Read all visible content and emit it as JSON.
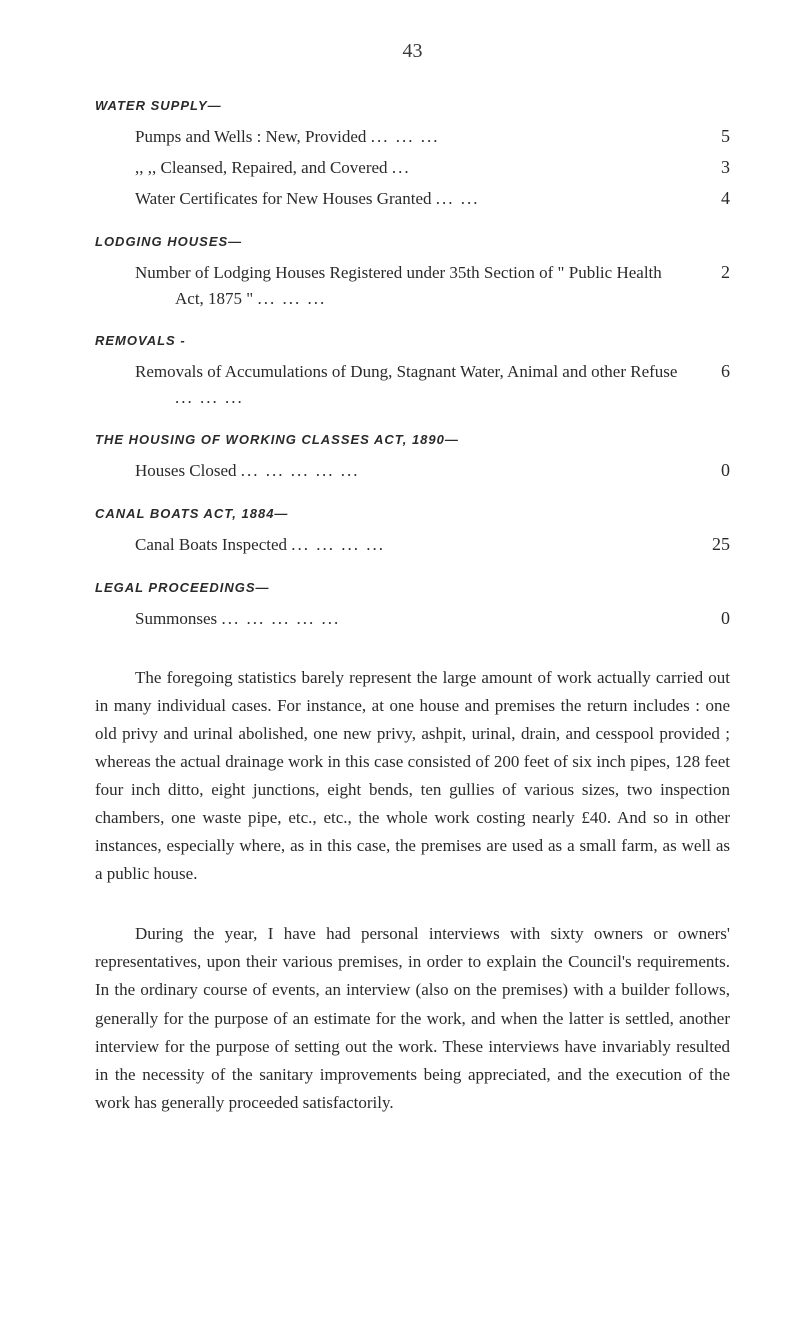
{
  "page_number": "43",
  "sections": {
    "water_supply": {
      "heading": "WATER SUPPLY—",
      "entries": [
        {
          "label": "Pumps and Wells : New, Provided",
          "dots": "...          ...          ...",
          "value": "5"
        },
        {
          "label": ",,              ,,     Cleansed, Repaired, and Covered",
          "dots": "...",
          "value": "3"
        },
        {
          "label": "Water Certificates for New Houses Granted",
          "dots": "...          ...",
          "value": "4"
        }
      ]
    },
    "lodging_houses": {
      "heading": "LODGING HOUSES—",
      "entries": [
        {
          "label": "Number of Lodging Houses Registered under 35th Section of \" Public Health Act, 1875 \"",
          "dots": "...          ...          ...",
          "value": "2"
        }
      ]
    },
    "removals": {
      "heading": "REMOVALS -",
      "entries": [
        {
          "label": "Removals of Accumulations of Dung, Stagnant Water, Animal and other Refuse",
          "dots": "...          ...          ...",
          "value": "6"
        }
      ]
    },
    "housing_working_classes": {
      "heading": "THE HOUSING OF WORKING CLASSES ACT, 1890—",
      "entries": [
        {
          "label": "Houses Closed",
          "dots": "...          ...          ...          ...          ...",
          "value": "0"
        }
      ]
    },
    "canal_boats": {
      "heading": "CANAL BOATS ACT, 1884—",
      "entries": [
        {
          "label": "Canal Boats Inspected",
          "dots": "...          ...          ...          ...",
          "value": "25"
        }
      ]
    },
    "legal_proceedings": {
      "heading": "LEGAL PROCEEDINGS—",
      "entries": [
        {
          "label": "Summonses",
          "dots": "...          ...          ...          ...          ...",
          "value": "0"
        }
      ]
    }
  },
  "paragraphs": [
    "The foregoing statistics barely represent the large amount of work actually carried out in many individual cases. For instance, at one house and premises the return includes : one old privy and urinal abolished, one new privy, ashpit, urinal, drain, and cesspool provided ; whereas the actual drainage work in this case consisted of 200 feet of six inch pipes, 128 feet four inch ditto, eight junctions, eight bends, ten gullies of various sizes, two inspection chambers, one waste pipe, etc., etc., the whole work costing nearly £40. And so in other instances, especially where, as in this case, the premises are used as a small farm, as well as a public house.",
    "During the year, I have had personal interviews with sixty owners or owners' representatives, upon their various premises, in order to explain the Council's requirements. In the ordinary course of events, an interview (also on the premises) with a builder follows, generally for the purpose of an estimate for the work, and when the latter is settled, another interview for the purpose of setting out the work. These interviews have invariably resulted in the necessity of the sanitary improvements being appreciated, and the execution of the work has generally proceeded satisfactorily."
  ],
  "styles": {
    "background_color": "#ffffff",
    "text_color": "#2a2a2a",
    "body_font_size": 17,
    "heading_font_size": 13,
    "page_number_font_size": 20
  }
}
